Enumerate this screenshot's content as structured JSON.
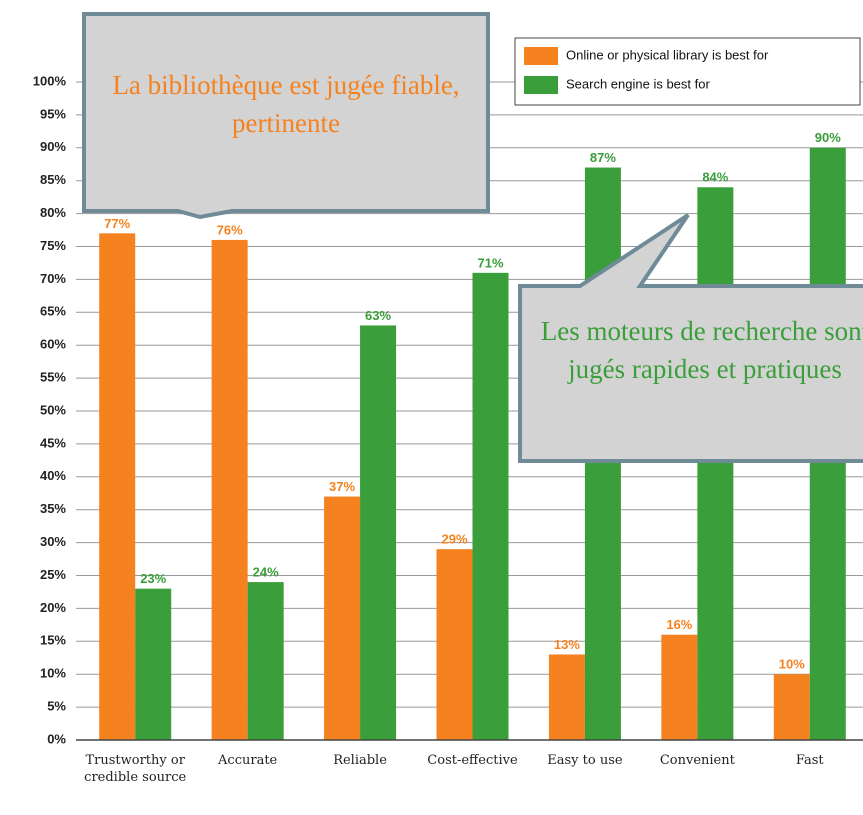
{
  "chart_data": {
    "type": "bar",
    "categories": [
      "Trustworthy or credible source",
      "Accurate",
      "Reliable",
      "Cost-effective",
      "Easy to use",
      "Convenient",
      "Fast"
    ],
    "series": [
      {
        "name": "Online or physical library is best for",
        "color": "#f5821f",
        "values": [
          77,
          76,
          37,
          29,
          13,
          16,
          10
        ],
        "value_labels": [
          "77%",
          "76%",
          "37%",
          "29%",
          "13%",
          "16%",
          "10%"
        ]
      },
      {
        "name": "Search engine is best for",
        "color": "#3a9e3a",
        "values": [
          23,
          24,
          63,
          71,
          87,
          84,
          90
        ],
        "value_labels": [
          "23%",
          "24%",
          "63%",
          "71%",
          "87%",
          "84%",
          "90%"
        ]
      }
    ],
    "ylim": [
      0,
      100
    ],
    "yticks": [
      {
        "value": 0,
        "label": "0%"
      },
      {
        "value": 5,
        "label": "5%"
      },
      {
        "value": 10,
        "label": "10%"
      },
      {
        "value": 15,
        "label": "15%"
      },
      {
        "value": 20,
        "label": "20%"
      },
      {
        "value": 25,
        "label": "25%"
      },
      {
        "value": 30,
        "label": "30%"
      },
      {
        "value": 35,
        "label": "35%"
      },
      {
        "value": 40,
        "label": "40%"
      },
      {
        "value": 45,
        "label": "45%"
      },
      {
        "value": 50,
        "label": "50%"
      },
      {
        "value": 55,
        "label": "55%"
      },
      {
        "value": 60,
        "label": "60%"
      },
      {
        "value": 65,
        "label": "65%"
      },
      {
        "value": 70,
        "label": "70%"
      },
      {
        "value": 75,
        "label": "75%"
      },
      {
        "value": 80,
        "label": "80%"
      },
      {
        "value": 85,
        "label": "85%"
      },
      {
        "value": 90,
        "label": "90%"
      },
      {
        "value": 95,
        "label": "95%"
      },
      {
        "value": 100,
        "label": "100%"
      }
    ],
    "grid": true,
    "legend": "upper right",
    "annotations": [
      "La bibliothèque est jugée fiable, pertinente",
      "Les moteurs de recherche sont jugés rapides et pratiques"
    ]
  }
}
